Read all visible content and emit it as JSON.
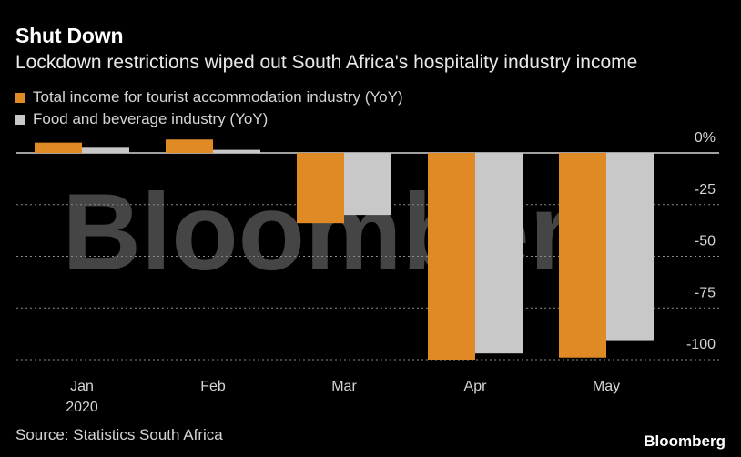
{
  "header": {
    "title": "Shut Down",
    "subtitle": "Lockdown restrictions wiped out South Africa's hospitality industry income"
  },
  "legend": [
    {
      "label": "Total income for tourist accommodation industry (YoY)",
      "color": "#e08a26"
    },
    {
      "label": "Food and beverage industry (YoY)",
      "color": "#c8c8c8"
    }
  ],
  "footer": {
    "source": "Source: Statistics South Africa",
    "brand": "Bloomberg"
  },
  "watermark": "Bloomberg",
  "chart_data": {
    "type": "bar",
    "categories": [
      "Jan",
      "Feb",
      "Mar",
      "Apr",
      "May"
    ],
    "category_sublabels": [
      "2020",
      "",
      "",
      "",
      ""
    ],
    "series": [
      {
        "name": "Total income for tourist accommodation industry (YoY)",
        "color": "#e08a26",
        "values": [
          5,
          6.5,
          -34,
          -100,
          -99
        ]
      },
      {
        "name": "Food and beverage industry (YoY)",
        "color": "#c8c8c8",
        "values": [
          2.5,
          1.5,
          -30,
          -97,
          -91
        ]
      }
    ],
    "ylim": [
      -103,
      10
    ],
    "yticks": [
      0,
      -25,
      -50,
      -75,
      -100
    ],
    "ytick_labels": [
      "0%",
      "-25",
      "-50",
      "-75",
      "-100"
    ],
    "gridlines": true,
    "title": "Shut Down",
    "xlabel": "",
    "ylabel": ""
  }
}
